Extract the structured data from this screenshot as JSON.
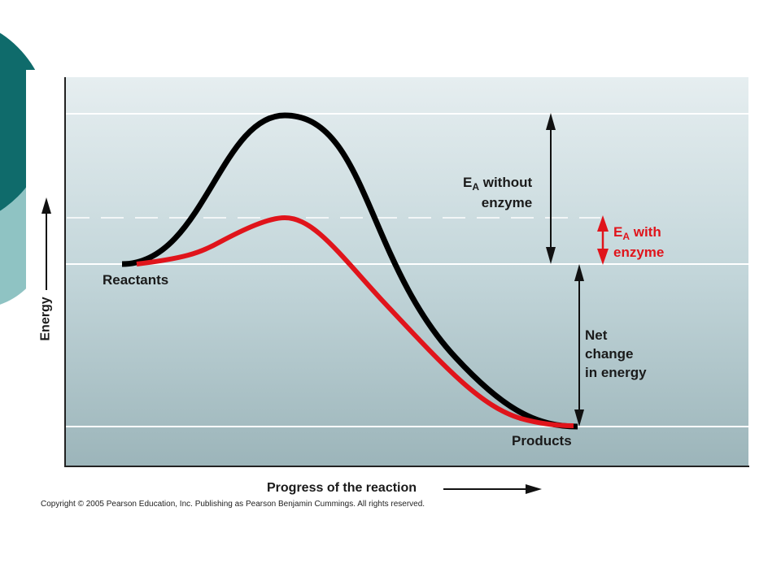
{
  "diagram": {
    "ea_without": {
      "prefix": "E",
      "sub": "A",
      "line1_rest": " without",
      "line2": "enzyme"
    },
    "ea_with": {
      "prefix": "E",
      "sub": "A",
      "line1_rest": " with",
      "line2": "enzyme"
    },
    "reactants": "Reactants",
    "products": "Products",
    "net_change": {
      "line1": "Net",
      "line2": "change",
      "line3": "in energy"
    },
    "x_axis_label": "Progress of the reaction",
    "y_axis_label": "Energy",
    "copyright": "Copyright © 2005 Pearson Education, Inc. Publishing as Pearson Benjamin Cummings. All rights reserved."
  },
  "colors": {
    "uncatalyzed_curve": "#000000",
    "catalyzed_curve": "#e0141b",
    "slide_teal": "#0f6b6b",
    "slide_light_teal": "#8fc3c3",
    "plot_top": "#e6eef0",
    "plot_bottom": "#9cb5ba"
  }
}
